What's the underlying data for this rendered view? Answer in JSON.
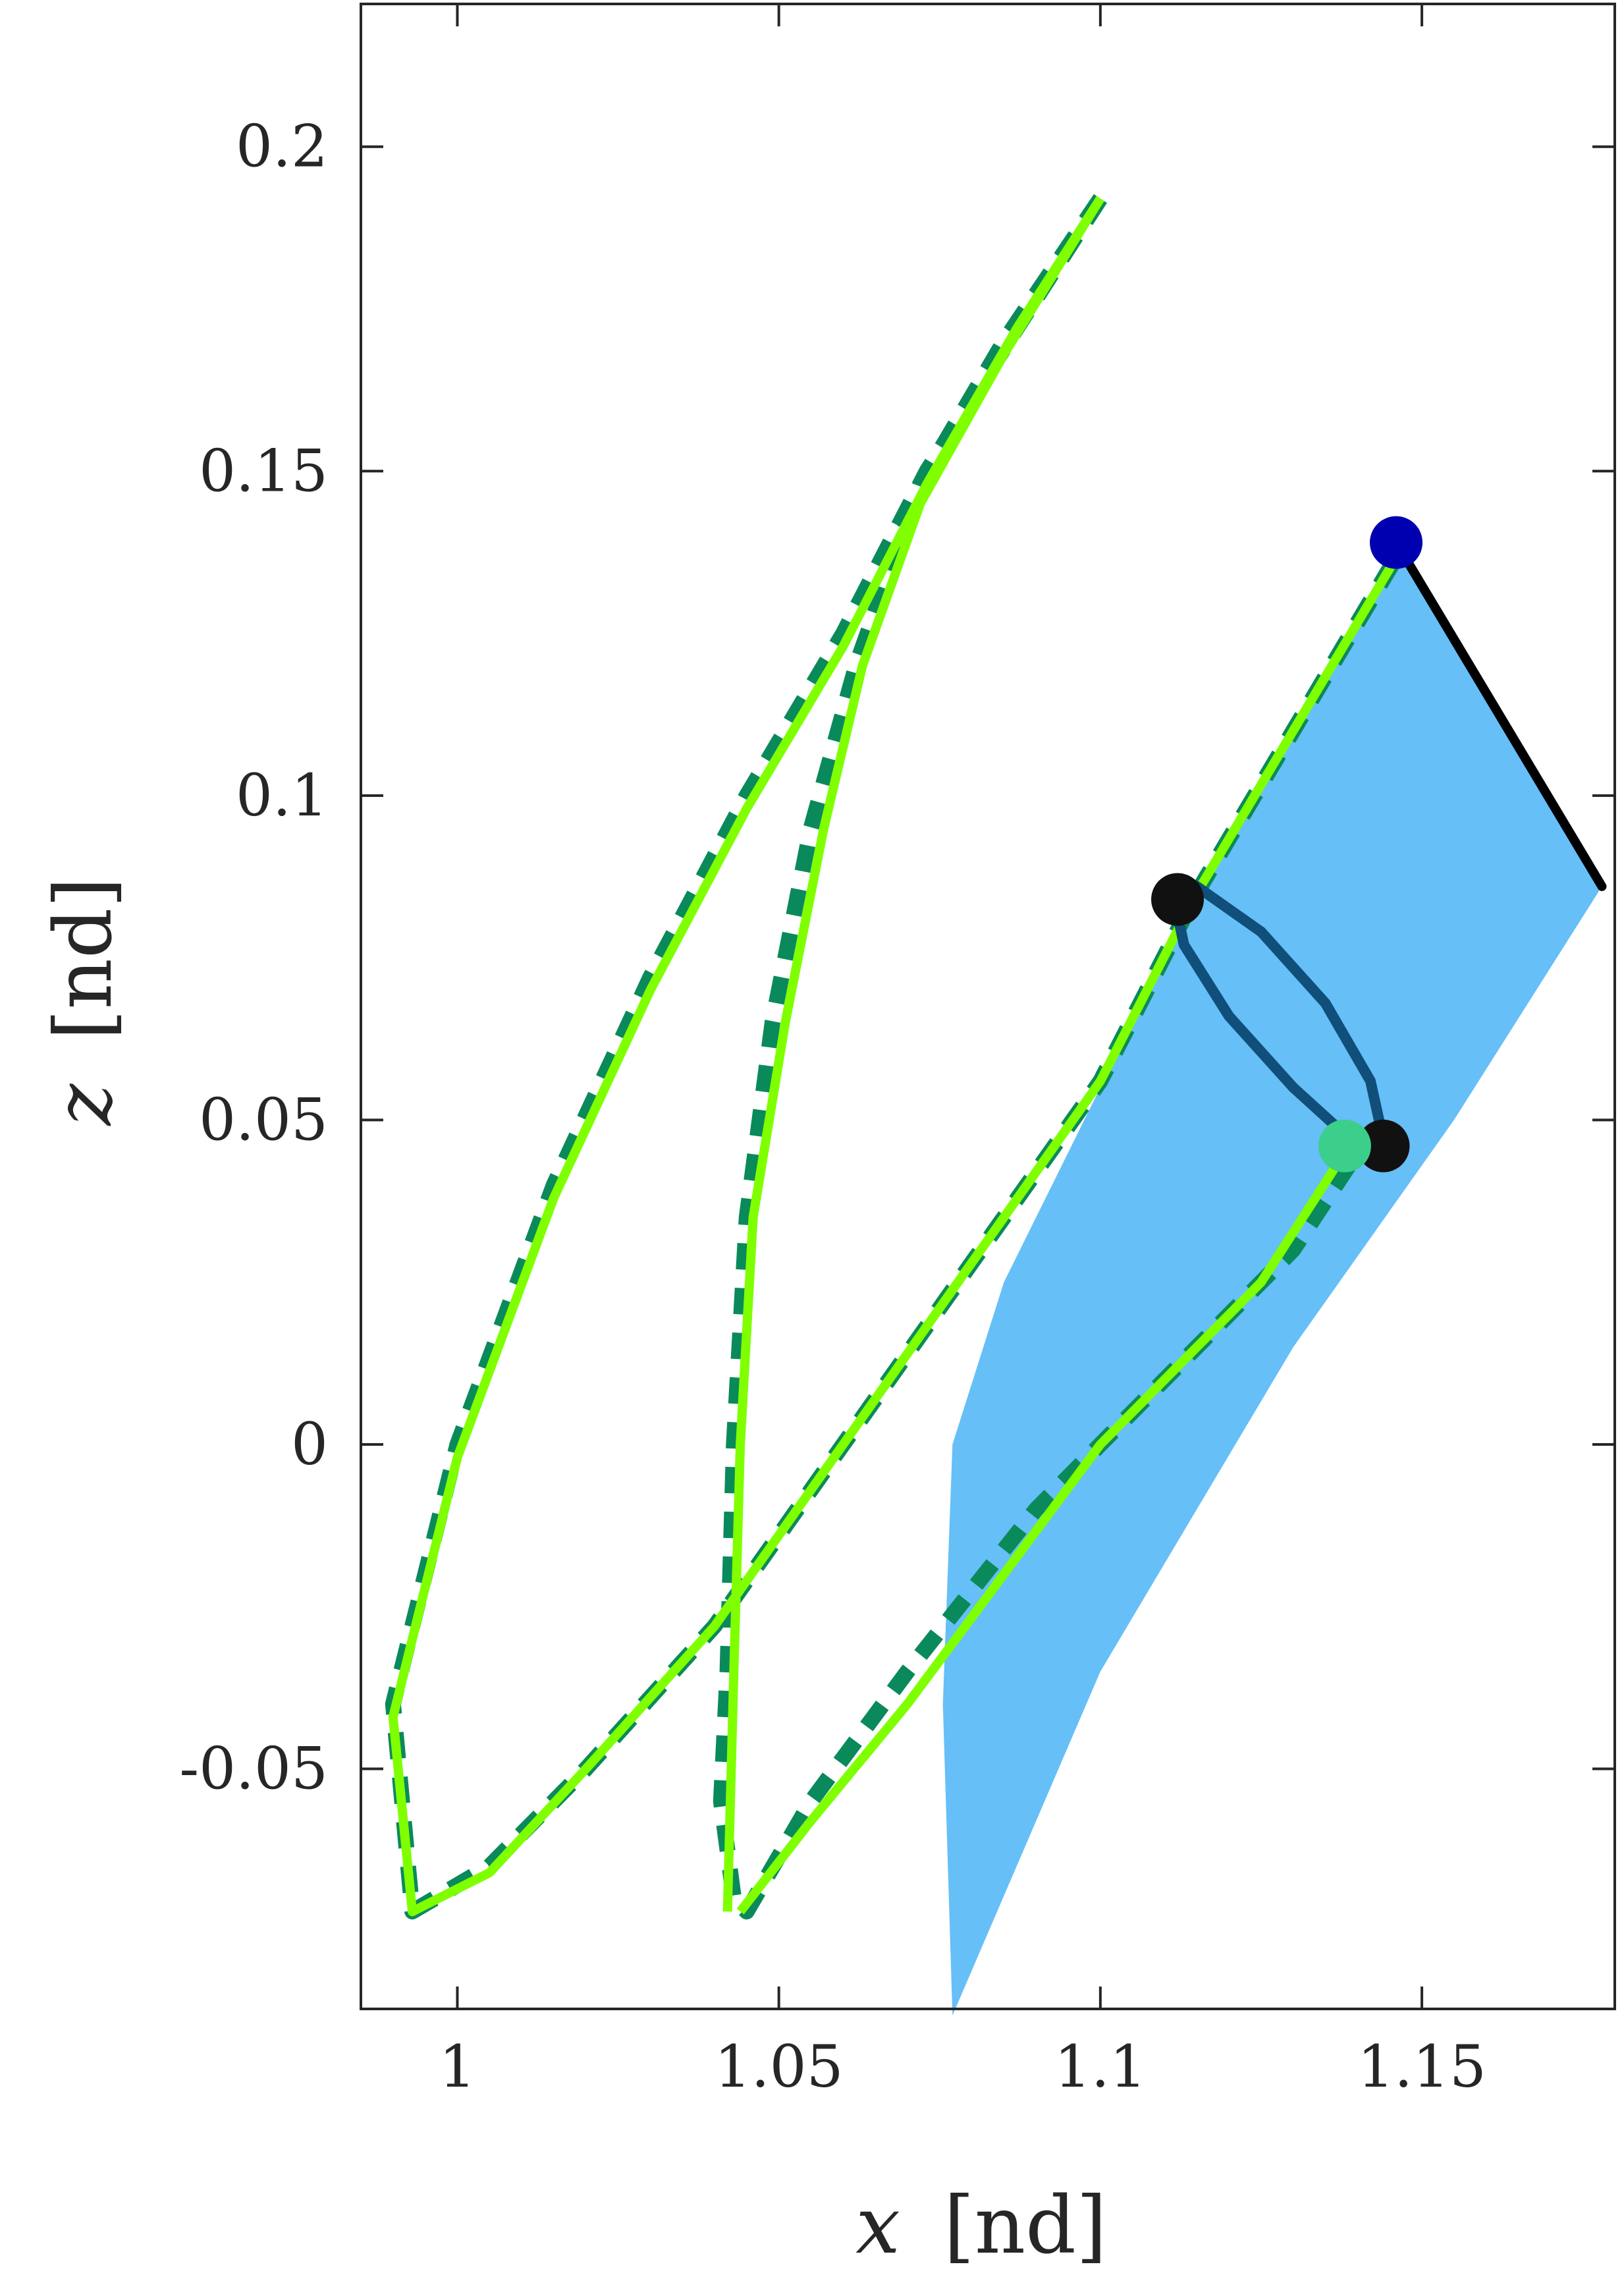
{
  "chart_data": {
    "type": "line",
    "xlabel": {
      "var": "x",
      "unit": "[nd]"
    },
    "ylabel": {
      "var": "z",
      "unit": "[nd]"
    },
    "xlim": [
      0.985,
      1.18
    ],
    "ylim": [
      -0.087,
      0.222
    ],
    "x_ticks": [
      1,
      1.05,
      1.1,
      1.15
    ],
    "x_tick_labels": [
      "1",
      "1.05",
      "1.1",
      "1.15"
    ],
    "y_ticks": [
      -0.05,
      0,
      0.05,
      0.1,
      0.15,
      0.2
    ],
    "y_tick_labels": [
      "-0.05",
      "0",
      "0.05",
      "0.1",
      "0.15",
      "0.2"
    ],
    "grid": false,
    "colors": {
      "region": "#66bff7",
      "lime": "#7fff00",
      "dash_green": "#0a8a5a",
      "ring": "#0f4f7a",
      "black_edge": "#000000",
      "start_marker": "#0000b0",
      "mid_marker": "#3ccf8c",
      "black_marker": "#111111"
    },
    "region": {
      "name": "blue region",
      "x": [
        1.147,
        1.178,
        1.155,
        1.13,
        1.1,
        1.077,
        1.0755,
        1.077,
        1.085,
        1.1,
        1.115,
        1.13,
        1.147
      ],
      "y": [
        0.138,
        0.086,
        0.05,
        0.015,
        -0.035,
        -0.088,
        -0.04,
        0.0,
        0.025,
        0.055,
        0.085,
        0.11,
        0.138
      ]
    },
    "series": [
      {
        "style": "dashed",
        "x": [
          1.1,
          1.087,
          1.073,
          1.06,
          1.045,
          1.03,
          1.015,
          1.0,
          0.99,
          0.993,
          1.005,
          1.02,
          1.04,
          1.06,
          1.08,
          1.1,
          1.115,
          1.13,
          1.148
        ],
        "y": [
          0.192,
          0.172,
          0.15,
          0.125,
          0.1,
          0.072,
          0.04,
          0.0,
          -0.04,
          -0.072,
          -0.065,
          -0.05,
          -0.028,
          0.0,
          0.028,
          0.056,
          0.085,
          0.11,
          0.14
        ]
      },
      {
        "style": "dashed",
        "x": [
          1.1,
          1.085,
          1.072,
          1.062,
          1.055,
          1.049,
          1.045,
          1.043,
          1.042,
          1.041,
          1.043,
          1.045,
          1.055,
          1.07,
          1.09,
          1.11,
          1.13,
          1.14
        ],
        "y": [
          0.192,
          0.17,
          0.148,
          0.12,
          0.095,
          0.065,
          0.035,
          0.0,
          -0.035,
          -0.055,
          -0.07,
          -0.072,
          -0.055,
          -0.035,
          -0.01,
          0.01,
          0.03,
          0.045
        ]
      },
      {
        "style": "solid",
        "x": [
          1.1,
          1.087,
          1.073,
          1.06,
          1.045,
          1.03,
          1.015,
          1.0,
          0.99,
          0.993,
          1.005,
          1.02,
          1.04,
          1.06,
          1.08,
          1.1,
          1.115,
          1.13,
          1.148
        ],
        "y": [
          0.192,
          0.172,
          0.148,
          0.123,
          0.098,
          0.07,
          0.038,
          -0.002,
          -0.042,
          -0.072,
          -0.066,
          -0.05,
          -0.028,
          0.0,
          0.028,
          0.056,
          0.085,
          0.11,
          0.14
        ]
      },
      {
        "style": "solid",
        "x": [
          1.1,
          1.085,
          1.072,
          1.063,
          1.057,
          1.051,
          1.046,
          1.044,
          1.043,
          1.042
        ],
        "y": [
          0.192,
          0.168,
          0.145,
          0.12,
          0.095,
          0.065,
          0.035,
          0.0,
          -0.035,
          -0.072
        ]
      },
      {
        "style": "solid",
        "x": [
          1.044,
          1.055,
          1.07,
          1.085,
          1.1,
          1.115,
          1.125,
          1.138
        ],
        "y": [
          -0.072,
          -0.058,
          -0.04,
          -0.02,
          0.0,
          0.015,
          0.025,
          0.045
        ]
      },
      {
        "style": "ring",
        "x": [
          1.1115,
          1.115,
          1.125,
          1.135,
          1.142,
          1.144,
          1.14,
          1.13,
          1.12,
          1.113,
          1.1115
        ],
        "y": [
          0.084,
          0.086,
          0.079,
          0.068,
          0.056,
          0.047,
          0.046,
          0.055,
          0.066,
          0.077,
          0.084
        ]
      },
      {
        "style": "black-edge",
        "x": [
          1.146,
          1.178
        ],
        "y": [
          0.139,
          0.086
        ]
      }
    ],
    "markers": [
      {
        "x": 1.146,
        "y": 0.139,
        "color": "start_marker"
      },
      {
        "x": 1.112,
        "y": 0.084,
        "color": "black_marker"
      },
      {
        "x": 1.144,
        "y": 0.046,
        "color": "black_marker"
      },
      {
        "x": 1.138,
        "y": 0.046,
        "color": "mid_marker"
      }
    ]
  }
}
